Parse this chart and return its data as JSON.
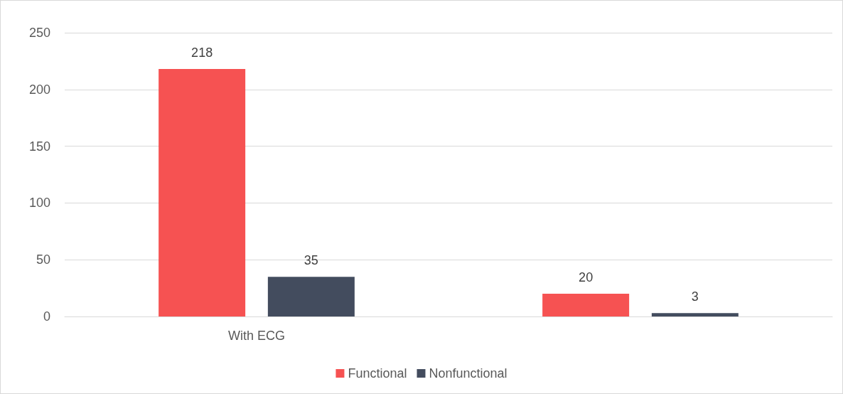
{
  "chart_data": {
    "type": "bar",
    "categories": [
      "With ECG",
      null
    ],
    "series": [
      {
        "name": "Functional",
        "color": "#f65252",
        "values": [
          218,
          20
        ]
      },
      {
        "name": "Nonfunctional",
        "color": "#434c5e",
        "values": [
          35,
          3
        ]
      }
    ],
    "ylim": [
      0,
      250
    ],
    "yticks": [
      0,
      50,
      100,
      150,
      200,
      250
    ],
    "grid": "y",
    "legend": "bottom",
    "data_labels": true
  }
}
